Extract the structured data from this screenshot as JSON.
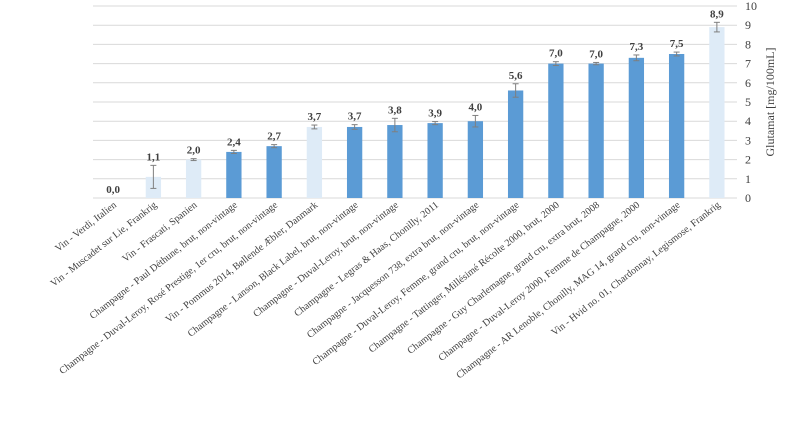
{
  "chart_data": {
    "type": "bar",
    "ylabel": "Glutamat [mg/100mL]",
    "ylim": [
      0,
      10
    ],
    "yticks": [
      0,
      1,
      2,
      3,
      4,
      5,
      6,
      7,
      8,
      9,
      10
    ],
    "grid": true,
    "y_axis_position": "right",
    "colors": {
      "vin": "#deebf7",
      "champagne": "#5b9bd5",
      "errorbar": "#7f7f7f",
      "grid": "#d9d9d9"
    },
    "categories": [
      "Vin - Verdi, Italien",
      "Vin - Muscadet sur Lie, Frankrig",
      "Vin - Frascati, Spanien",
      "Champagne - Paul Déthune, brut, non-vintage",
      "Champagne - Duval-Leroy, Rosé Prestige, 1er cru, brut, non-vintage",
      "Vin - Pommus 2014, Bøllende Æbler, Danmark",
      "Champagne - Lanson, Black Label, brut, non-vintage",
      "Champagne - Duval-Leroy, brut, non-vintage",
      "Champagne - Legras & Haas, Chonilly, 2011",
      "Champagne - Jacquesson 738, extra brut, non-vintage",
      "Champagne - Duval-Leroy, Femme, grand cru, brut, non-vintage",
      "Champagne - Tattinger, Millésimé Récolte 2000, brut, 2000",
      "Champagne - Guy Charlemagne, grand cru, extra brut, 2008",
      "Champagne - Duval-Leroy 2000, Femme de Champagne, 2000",
      "Champagne - AR Lenoble, Chonilly, MAG 14, grand cru, non-vintage",
      "Vin - Hvid no. 01, Chardonnay, Legismose, Frankrig"
    ],
    "values": [
      0.0,
      1.1,
      2.0,
      2.4,
      2.7,
      3.7,
      3.7,
      3.8,
      3.9,
      4.0,
      5.6,
      7.0,
      7.0,
      7.3,
      7.5,
      8.9
    ],
    "value_labels": [
      "0,0",
      "1,1",
      "2,0",
      "2,4",
      "2,7",
      "3,7",
      "3,7",
      "3,8",
      "3,9",
      "4,0",
      "5,6",
      "7,0",
      "7,0",
      "7,3",
      "7,5",
      "8,9"
    ],
    "errors": [
      0.0,
      0.6,
      0.05,
      0.08,
      0.08,
      0.1,
      0.12,
      0.35,
      0.08,
      0.3,
      0.35,
      0.1,
      0.06,
      0.15,
      0.1,
      0.25
    ],
    "groups": [
      "vin",
      "vin",
      "vin",
      "champagne",
      "champagne",
      "vin",
      "champagne",
      "champagne",
      "champagne",
      "champagne",
      "champagne",
      "champagne",
      "champagne",
      "champagne",
      "champagne",
      "vin"
    ]
  }
}
